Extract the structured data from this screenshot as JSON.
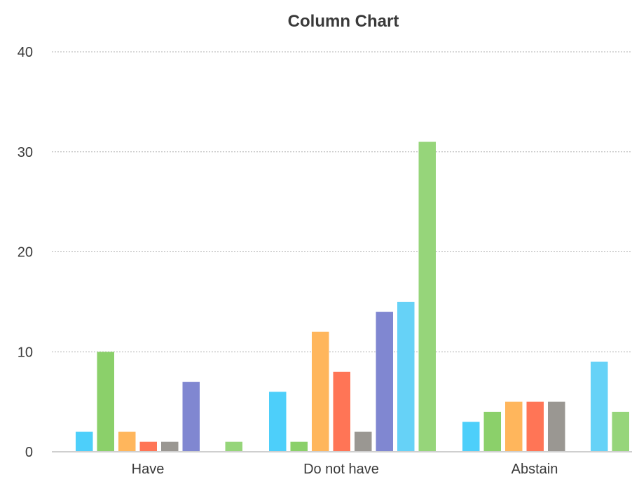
{
  "chart_data": {
    "type": "bar",
    "title": "Column Chart",
    "xlabel": "",
    "ylabel": "",
    "ylim": [
      0,
      40
    ],
    "yticks": [
      0,
      10,
      20,
      30,
      40
    ],
    "grid": true,
    "legend": "none",
    "categories": [
      "Have",
      "Do not have",
      "Abstain"
    ],
    "series": [
      {
        "color": "#4DCFFA",
        "values": [
          2,
          6,
          3
        ]
      },
      {
        "color": "#8BD06A",
        "values": [
          10,
          1,
          4
        ]
      },
      {
        "color": "#FFB65C",
        "values": [
          2,
          12,
          5
        ]
      },
      {
        "color": "#FF7556",
        "values": [
          1,
          8,
          5
        ]
      },
      {
        "color": "#9A9792",
        "values": [
          1,
          2,
          5
        ]
      },
      {
        "color": "#8087D1",
        "values": [
          7,
          14,
          null
        ]
      },
      {
        "color": "#66D2F7",
        "values": [
          null,
          15,
          9
        ]
      },
      {
        "color": "#96D57A",
        "values": [
          1,
          31,
          4
        ]
      }
    ]
  }
}
